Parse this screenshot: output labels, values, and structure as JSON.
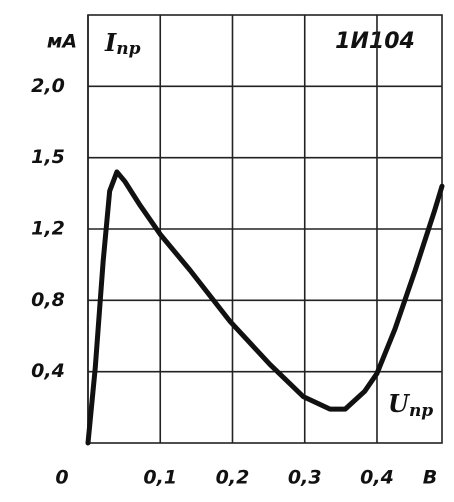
{
  "chart_data": {
    "type": "line",
    "model": "1И104",
    "y_unit": "мА",
    "x_unit": "В",
    "y_label": {
      "symbol": "I",
      "subscript": "пр"
    },
    "x_label": {
      "symbol": "U",
      "subscript": "пр"
    },
    "color": "#111111",
    "x": [
      0,
      0.01,
      0.021,
      0.03,
      0.04,
      0.051,
      0.072,
      0.1,
      0.141,
      0.197,
      0.252,
      0.298,
      0.335,
      0.356,
      0.383,
      0.4,
      0.425,
      0.453,
      0.48,
      0.49
    ],
    "values": [
      0,
      0.42,
      1.02,
      1.36,
      1.44,
      1.4,
      1.3,
      1.17,
      0.97,
      0.68,
      0.44,
      0.26,
      0.19,
      0.19,
      0.29,
      0.39,
      0.64,
      0.97,
      1.28,
      1.38
    ],
    "xlim": [
      0,
      0.49
    ],
    "xticks": [
      0,
      {
        "value": 0.1,
        "label": "0,1"
      },
      {
        "value": 0.2,
        "label": "0,2"
      },
      {
        "value": 0.3,
        "label": "0,3"
      },
      {
        "value": 0.4,
        "label": "0,4"
      }
    ],
    "ylim": [
      0,
      2.5
    ],
    "yticks": [
      {
        "value": 0.4,
        "label": "0,4"
      },
      {
        "value": 0.8,
        "label": "0,8"
      },
      {
        "value": 1.2,
        "label": "1,2"
      },
      {
        "value": 1.5,
        "label": "1,5"
      },
      {
        "value": 2.0,
        "label": "2,0"
      }
    ],
    "grid": true
  }
}
